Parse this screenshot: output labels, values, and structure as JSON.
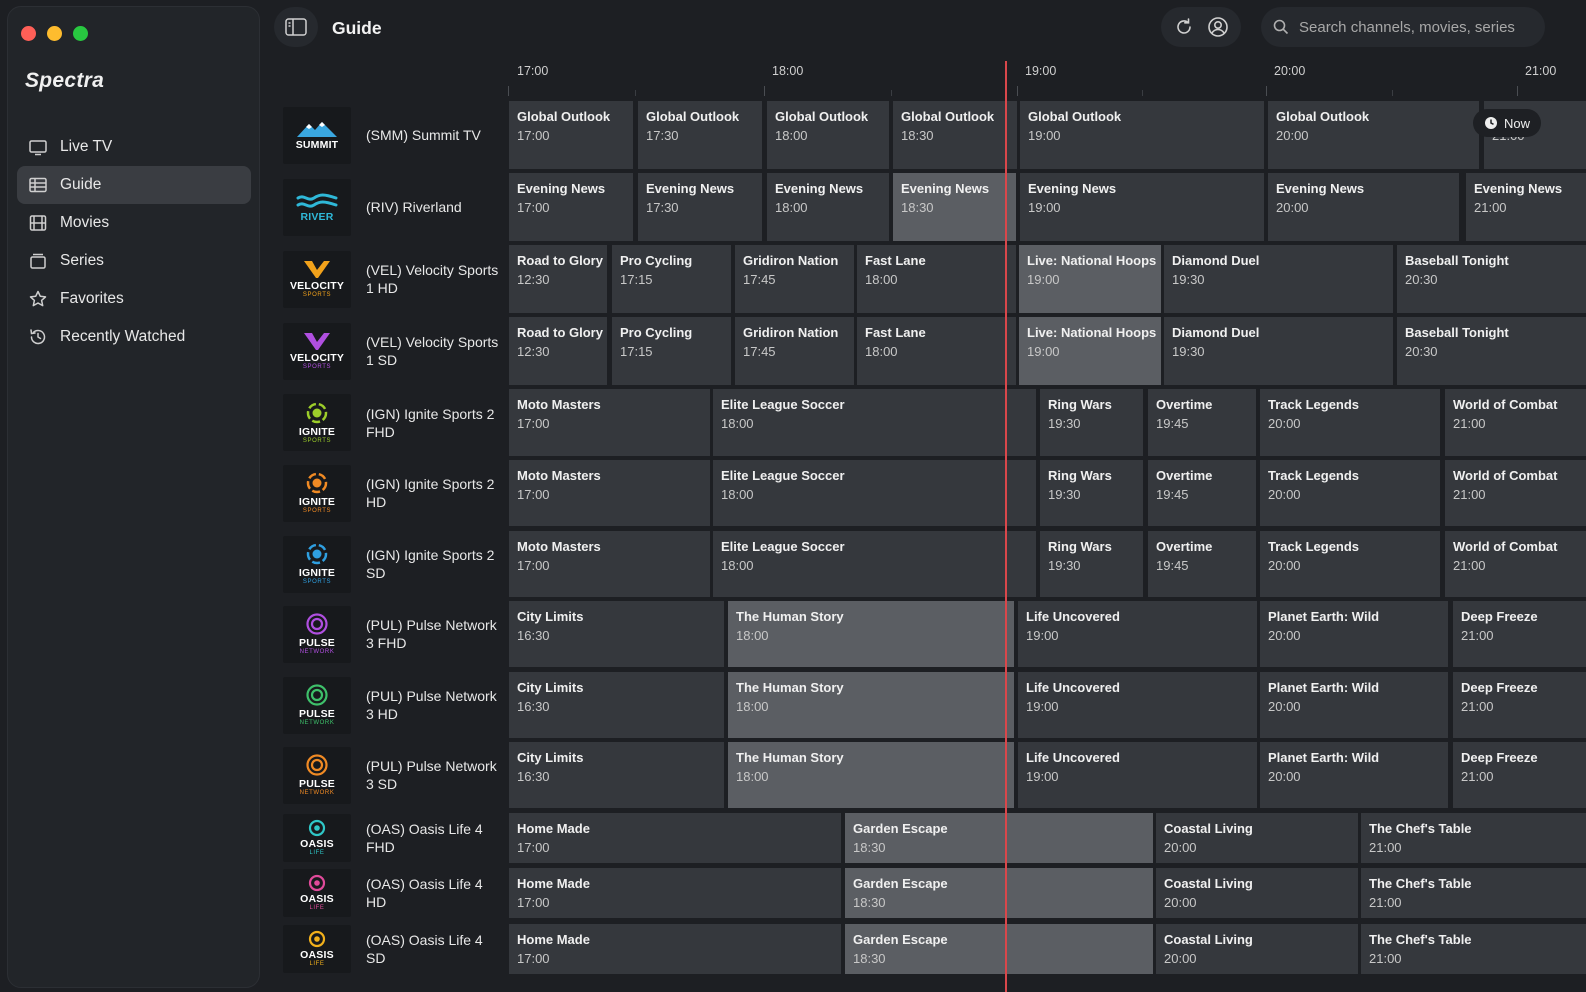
{
  "app": {
    "brand": "Spectra"
  },
  "sidebar": {
    "items": [
      {
        "label": "Live TV",
        "icon": "tv-icon"
      },
      {
        "label": "Guide",
        "icon": "guide-icon"
      },
      {
        "label": "Movies",
        "icon": "film-icon"
      },
      {
        "label": "Series",
        "icon": "series-icon"
      },
      {
        "label": "Favorites",
        "icon": "star-icon"
      },
      {
        "label": "Recently Watched",
        "icon": "history-icon"
      }
    ],
    "active": "Guide"
  },
  "header": {
    "title": "Guide",
    "search_placeholder": "Search channels, movies, series"
  },
  "timeline": {
    "ticks": [
      "17:00",
      "18:00",
      "19:00",
      "20:00",
      "21:00"
    ],
    "now_label": "Now"
  },
  "colors": {
    "accent_now": "#d9474b",
    "highlight": "#5b5e63",
    "cell": "#35383d"
  },
  "channels": [
    {
      "name": "(SMM) Summit TV",
      "logo": "SUMMIT",
      "logo_sub": "",
      "logo_color": "#ffffff",
      "programs": [
        [
          "Global Outlook",
          "17:00"
        ],
        [
          "Global Outlook",
          "17:30"
        ],
        [
          "Global Outlook",
          "18:00"
        ],
        [
          "Global Outlook",
          "18:30"
        ],
        [
          "Global Outlook",
          "19:00"
        ],
        [
          "Global Outlook",
          "20:00"
        ],
        [
          "",
          "21:00"
        ]
      ]
    },
    {
      "name": "(RIV) Riverland",
      "logo": "RIVER",
      "logo_sub": "",
      "logo_color": "#2fb8d8",
      "programs": [
        [
          "Evening News",
          "17:00"
        ],
        [
          "Evening News",
          "17:30"
        ],
        [
          "Evening News",
          "18:00"
        ],
        [
          "Evening News",
          "18:30"
        ],
        [
          "Evening News",
          "19:00"
        ],
        [
          "Evening News",
          "20:00"
        ],
        [
          "Evening News",
          "21:00"
        ]
      ]
    },
    {
      "name": "(VEL) Velocity Sports 1 HD",
      "logo": "VELOCITY",
      "logo_sub": "SPORTS",
      "logo_color": "#f2a21b",
      "programs": [
        [
          "Road to Glory",
          "12:30"
        ],
        [
          "Pro Cycling",
          "17:15"
        ],
        [
          "Gridiron Nation",
          "17:45"
        ],
        [
          "Fast Lane",
          "18:00"
        ],
        [
          "Live: National Hoops",
          "19:00"
        ],
        [
          "Diamond Duel",
          "19:30"
        ],
        [
          "Baseball Tonight",
          "20:30"
        ]
      ]
    },
    {
      "name": "(VEL) Velocity Sports 1 SD",
      "logo": "VELOCITY",
      "logo_sub": "SPORTS",
      "logo_color": "#b04fe0",
      "programs": [
        [
          "Road to Glory",
          "12:30"
        ],
        [
          "Pro Cycling",
          "17:15"
        ],
        [
          "Gridiron Nation",
          "17:45"
        ],
        [
          "Fast Lane",
          "18:00"
        ],
        [
          "Live: National Hoops",
          "19:00"
        ],
        [
          "Diamond Duel",
          "19:30"
        ],
        [
          "Baseball Tonight",
          "20:30"
        ]
      ]
    },
    {
      "name": "(IGN) Ignite Sports 2 FHD",
      "logo": "IGNITE",
      "logo_sub": "SPORTS",
      "logo_color": "#9ccd2a",
      "programs": [
        [
          "Moto Masters",
          "17:00"
        ],
        [
          "Elite League Soccer",
          "18:00"
        ],
        [
          "Ring Wars",
          "19:30"
        ],
        [
          "Overtime",
          "19:45"
        ],
        [
          "Track Legends",
          "20:00"
        ],
        [
          "World of Combat",
          "21:00"
        ]
      ]
    },
    {
      "name": "(IGN) Ignite Sports 2 HD",
      "logo": "IGNITE",
      "logo_sub": "SPORTS",
      "logo_color": "#f08a24",
      "programs": [
        [
          "Moto Masters",
          "17:00"
        ],
        [
          "Elite League Soccer",
          "18:00"
        ],
        [
          "Ring Wars",
          "19:30"
        ],
        [
          "Overtime",
          "19:45"
        ],
        [
          "Track Legends",
          "20:00"
        ],
        [
          "World of Combat",
          "21:00"
        ]
      ]
    },
    {
      "name": "(IGN) Ignite Sports 2 SD",
      "logo": "IGNITE",
      "logo_sub": "SPORTS",
      "logo_color": "#2f9fe0",
      "programs": [
        [
          "Moto Masters",
          "17:00"
        ],
        [
          "Elite League Soccer",
          "18:00"
        ],
        [
          "Ring Wars",
          "19:30"
        ],
        [
          "Overtime",
          "19:45"
        ],
        [
          "Track Legends",
          "20:00"
        ],
        [
          "World of Combat",
          "21:00"
        ]
      ]
    },
    {
      "name": "(PUL) Pulse Network 3 FHD",
      "logo": "PULSE",
      "logo_sub": "NETWORK",
      "logo_color": "#b04fe0",
      "programs": [
        [
          "City Limits",
          "16:30"
        ],
        [
          "The Human Story",
          "18:00"
        ],
        [
          "Life Uncovered",
          "19:00"
        ],
        [
          "Planet Earth: Wild",
          "20:00"
        ],
        [
          "Deep Freeze",
          "21:00"
        ]
      ]
    },
    {
      "name": "(PUL) Pulse Network 3 HD",
      "logo": "PULSE",
      "logo_sub": "NETWORK",
      "logo_color": "#3ec06a",
      "programs": [
        [
          "City Limits",
          "16:30"
        ],
        [
          "The Human Story",
          "18:00"
        ],
        [
          "Life Uncovered",
          "19:00"
        ],
        [
          "Planet Earth: Wild",
          "20:00"
        ],
        [
          "Deep Freeze",
          "21:00"
        ]
      ]
    },
    {
      "name": "(PUL) Pulse Network 3 SD",
      "logo": "PULSE",
      "logo_sub": "NETWORK",
      "logo_color": "#f08a24",
      "programs": [
        [
          "City Limits",
          "16:30"
        ],
        [
          "The Human Story",
          "18:00"
        ],
        [
          "Life Uncovered",
          "19:00"
        ],
        [
          "Planet Earth: Wild",
          "20:00"
        ],
        [
          "Deep Freeze",
          "21:00"
        ]
      ]
    },
    {
      "name": "(OAS) Oasis Life 4 FHD",
      "logo": "OASIS",
      "logo_sub": "LIFE",
      "logo_color": "#2fc7c7",
      "programs": [
        [
          "Home Made",
          "17:00"
        ],
        [
          "Garden Escape",
          "18:30"
        ],
        [
          "Coastal Living",
          "20:00"
        ],
        [
          "The Chef's Table",
          "21:00"
        ]
      ]
    },
    {
      "name": "(OAS) Oasis Life 4 HD",
      "logo": "OASIS",
      "logo_sub": "LIFE",
      "logo_color": "#e04a9a",
      "programs": [
        [
          "Home Made",
          "17:00"
        ],
        [
          "Garden Escape",
          "18:30"
        ],
        [
          "Coastal Living",
          "20:00"
        ],
        [
          "The Chef's Table",
          "21:00"
        ]
      ]
    },
    {
      "name": "(OAS) Oasis Life 4 SD",
      "logo": "OASIS",
      "logo_sub": "LIFE",
      "logo_color": "#f2b01b",
      "programs": [
        [
          "Home Made",
          "17:00"
        ],
        [
          "Garden Escape",
          "18:30"
        ],
        [
          "Coastal Living",
          "20:00"
        ],
        [
          "The Chef's Table",
          "21:00"
        ]
      ]
    }
  ]
}
